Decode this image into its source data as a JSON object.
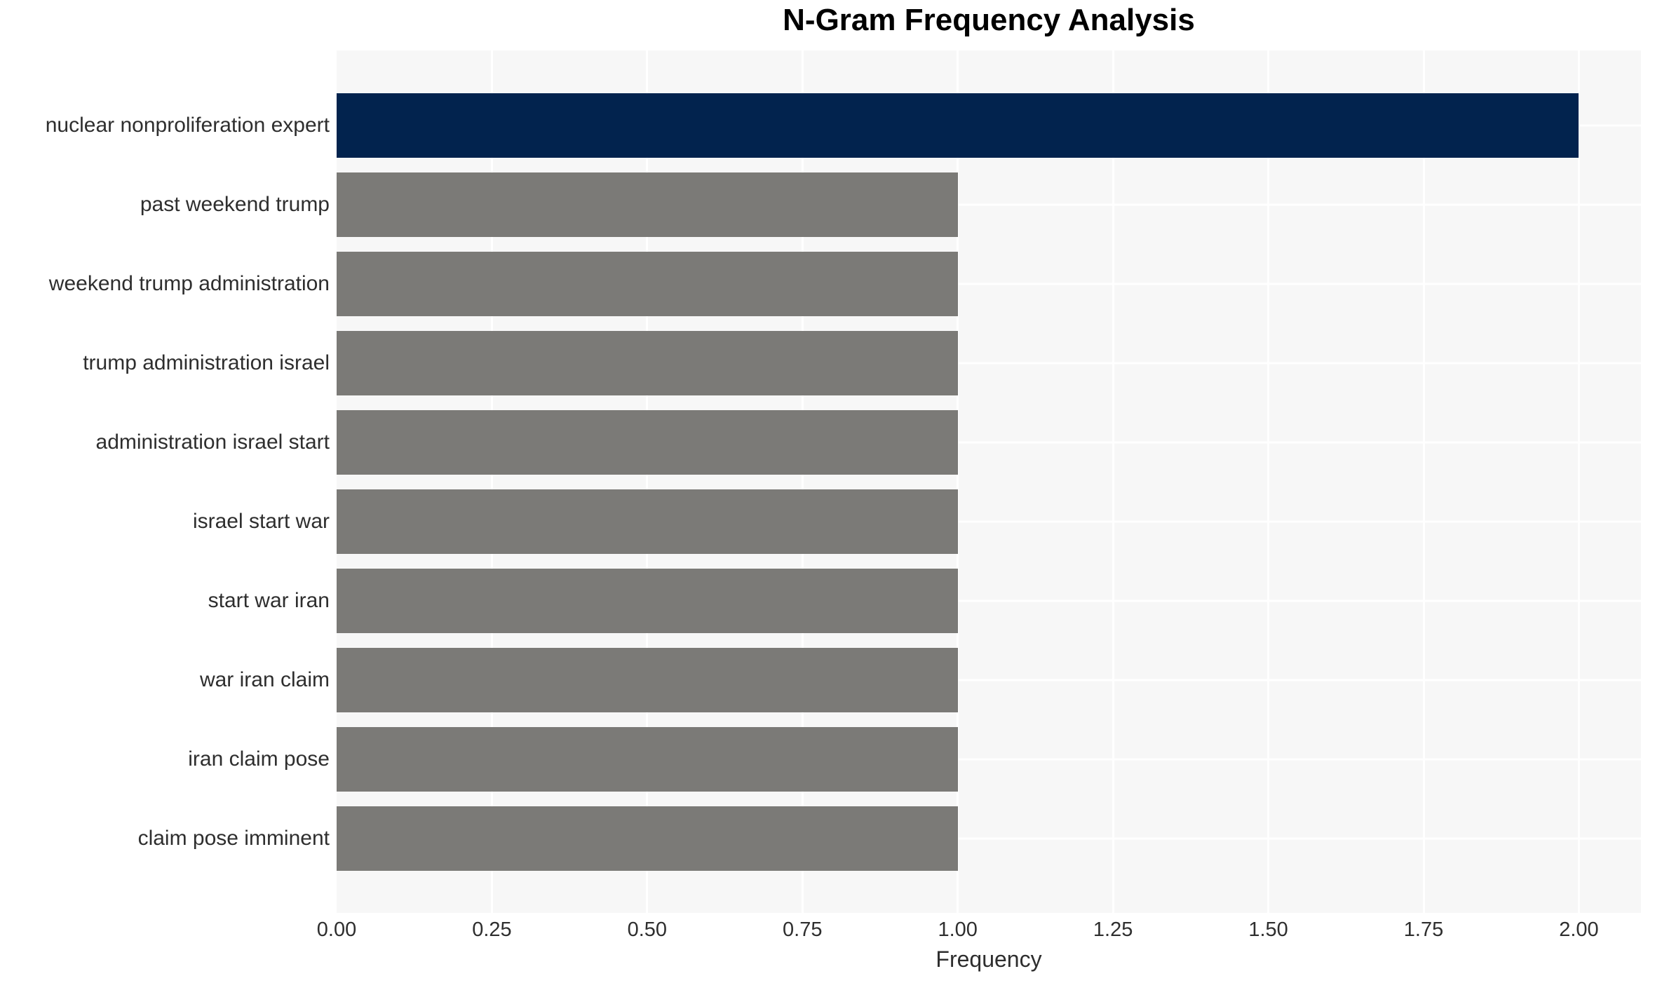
{
  "title": "N-Gram Frequency Analysis",
  "chart_data": {
    "type": "bar",
    "orientation": "horizontal",
    "title": "N-Gram Frequency Analysis",
    "categories": [
      "nuclear nonproliferation expert",
      "past weekend trump",
      "weekend trump administration",
      "trump administration israel",
      "administration israel start",
      "israel start war",
      "start war iran",
      "war iran claim",
      "iran claim pose",
      "claim pose imminent"
    ],
    "values": [
      2,
      1,
      1,
      1,
      1,
      1,
      1,
      1,
      1,
      1
    ],
    "bar_colors": [
      "#02234e",
      "#7b7a77",
      "#7b7a77",
      "#7b7a77",
      "#7b7a77",
      "#7b7a77",
      "#7b7a77",
      "#7b7a77",
      "#7b7a77",
      "#7b7a77"
    ],
    "xlabel": "Frequency",
    "ylabel": "",
    "xlim": [
      0,
      2.1
    ],
    "xticks": [
      0,
      0.25,
      0.5,
      0.75,
      1.0,
      1.25,
      1.5,
      1.75,
      2.0
    ],
    "xtick_labels": [
      "0.00",
      "0.25",
      "0.50",
      "0.75",
      "1.00",
      "1.25",
      "1.50",
      "1.75",
      "2.00"
    ],
    "grid": true,
    "legend": false,
    "colors": {
      "panel_background": "#f7f7f7",
      "gridline": "#ffffff",
      "text": "#2e2e2e",
      "title_text": "#000000",
      "highlight_bar": "#02234e",
      "default_bar": "#7b7a77"
    }
  }
}
